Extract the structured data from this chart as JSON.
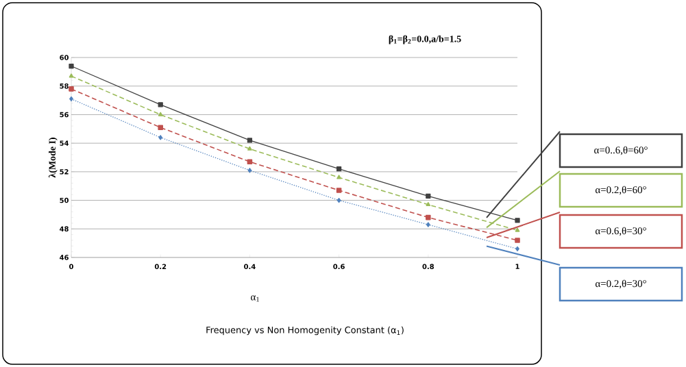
{
  "chart_data": {
    "type": "line",
    "xlabel": "α$_{1}$",
    "ylabel": "λ(Mode I)",
    "annotations": [
      "β$_{1}$=β$_{2}$=0.0,a/b=1.5",
      "Frequency vs Non Homogenity Constant (α$_{1}$)"
    ],
    "x": [
      0,
      0.2,
      0.4,
      0.6,
      0.8,
      1
    ],
    "xlim": [
      0,
      1
    ],
    "xticks": [
      0,
      0.2,
      0.4,
      0.6,
      0.8,
      1
    ],
    "ylim": [
      46,
      60
    ],
    "yticks": [
      46,
      48,
      50,
      52,
      54,
      56,
      58,
      60
    ],
    "grid": "y",
    "legend": "right",
    "series": [
      {
        "name": "α=0..6,θ=60°",
        "color": "#404040",
        "marker": "square",
        "line_style": "solid",
        "values": [
          59.4,
          56.7,
          54.2,
          52.2,
          50.3,
          48.6
        ]
      },
      {
        "name": "α=0.2,θ=60°",
        "color": "#9bbb59",
        "marker": "triangle",
        "line_style": "dashed",
        "values": [
          58.7,
          56.0,
          53.6,
          51.6,
          49.7,
          47.9
        ]
      },
      {
        "name": "α=0.6,θ=30°",
        "color": "#c0504d",
        "marker": "square",
        "line_style": "dashed",
        "values": [
          57.8,
          55.1,
          52.7,
          50.7,
          48.8,
          47.2
        ]
      },
      {
        "name": "α=0.2,θ=30°",
        "color": "#4f81bd",
        "marker": "diamond",
        "line_style": "dotted",
        "values": [
          57.1,
          54.4,
          52.1,
          50.0,
          48.3,
          46.6
        ]
      }
    ]
  }
}
